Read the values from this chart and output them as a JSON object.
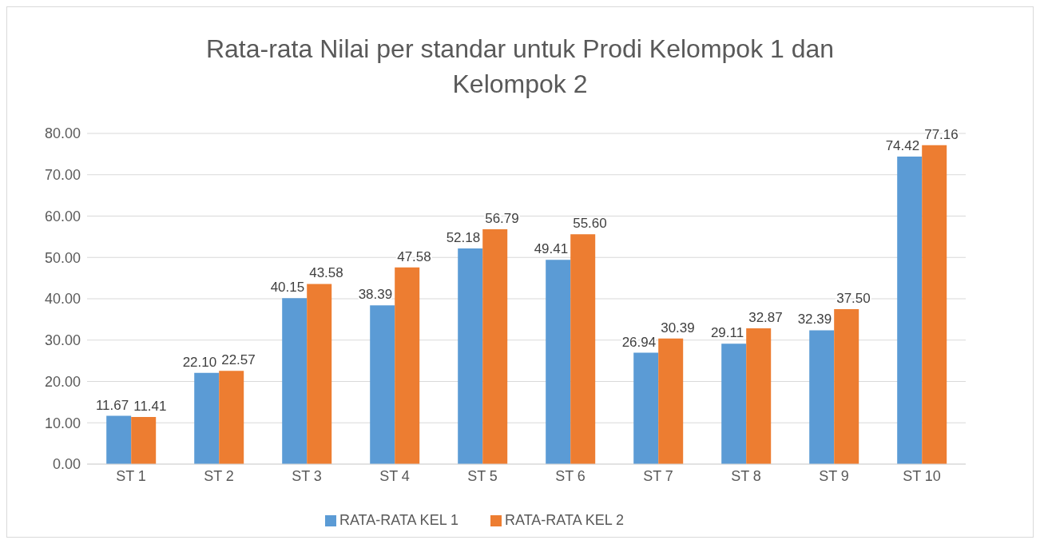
{
  "chart_data": {
    "type": "bar",
    "title": "Rata-rata Nilai per standar untuk Prodi Kelompok 1 dan Kelompok 2",
    "categories": [
      "ST 1",
      "ST 2",
      "ST 3",
      "ST 4",
      "ST 5",
      "ST 6",
      "ST 7",
      "ST 8",
      "ST 9",
      "ST 10"
    ],
    "series": [
      {
        "name": "RATA-RATA KEL 1",
        "color": "#5b9bd5",
        "values": [
          11.67,
          22.1,
          40.15,
          38.39,
          52.18,
          49.41,
          26.94,
          29.11,
          32.39,
          74.42
        ],
        "value_labels": [
          "11.67",
          "22.10",
          "40.15",
          "38.39",
          "52.18",
          "49.41",
          "26.94",
          "29.11",
          "32.39",
          "74.42"
        ]
      },
      {
        "name": "RATA-RATA KEL 2",
        "color": "#ed7d31",
        "values": [
          11.41,
          22.57,
          43.58,
          47.58,
          56.79,
          55.6,
          30.39,
          32.87,
          37.5,
          77.16
        ],
        "value_labels": [
          "11.41",
          "22.57",
          "43.58",
          "47.58",
          "56.79",
          "55.60",
          "30.39",
          "32.87",
          "37.50",
          "77.16"
        ]
      }
    ],
    "ylim": [
      0,
      80
    ],
    "yticks": [
      {
        "value": 0,
        "label": "0.00"
      },
      {
        "value": 10,
        "label": "10.00"
      },
      {
        "value": 20,
        "label": "20.00"
      },
      {
        "value": 30,
        "label": "30.00"
      },
      {
        "value": 40,
        "label": "40.00"
      },
      {
        "value": 50,
        "label": "50.00"
      },
      {
        "value": 60,
        "label": "60.00"
      },
      {
        "value": 70,
        "label": "70.00"
      },
      {
        "value": 80,
        "label": "80.00"
      }
    ],
    "grid": "y",
    "legend": "bottom"
  }
}
